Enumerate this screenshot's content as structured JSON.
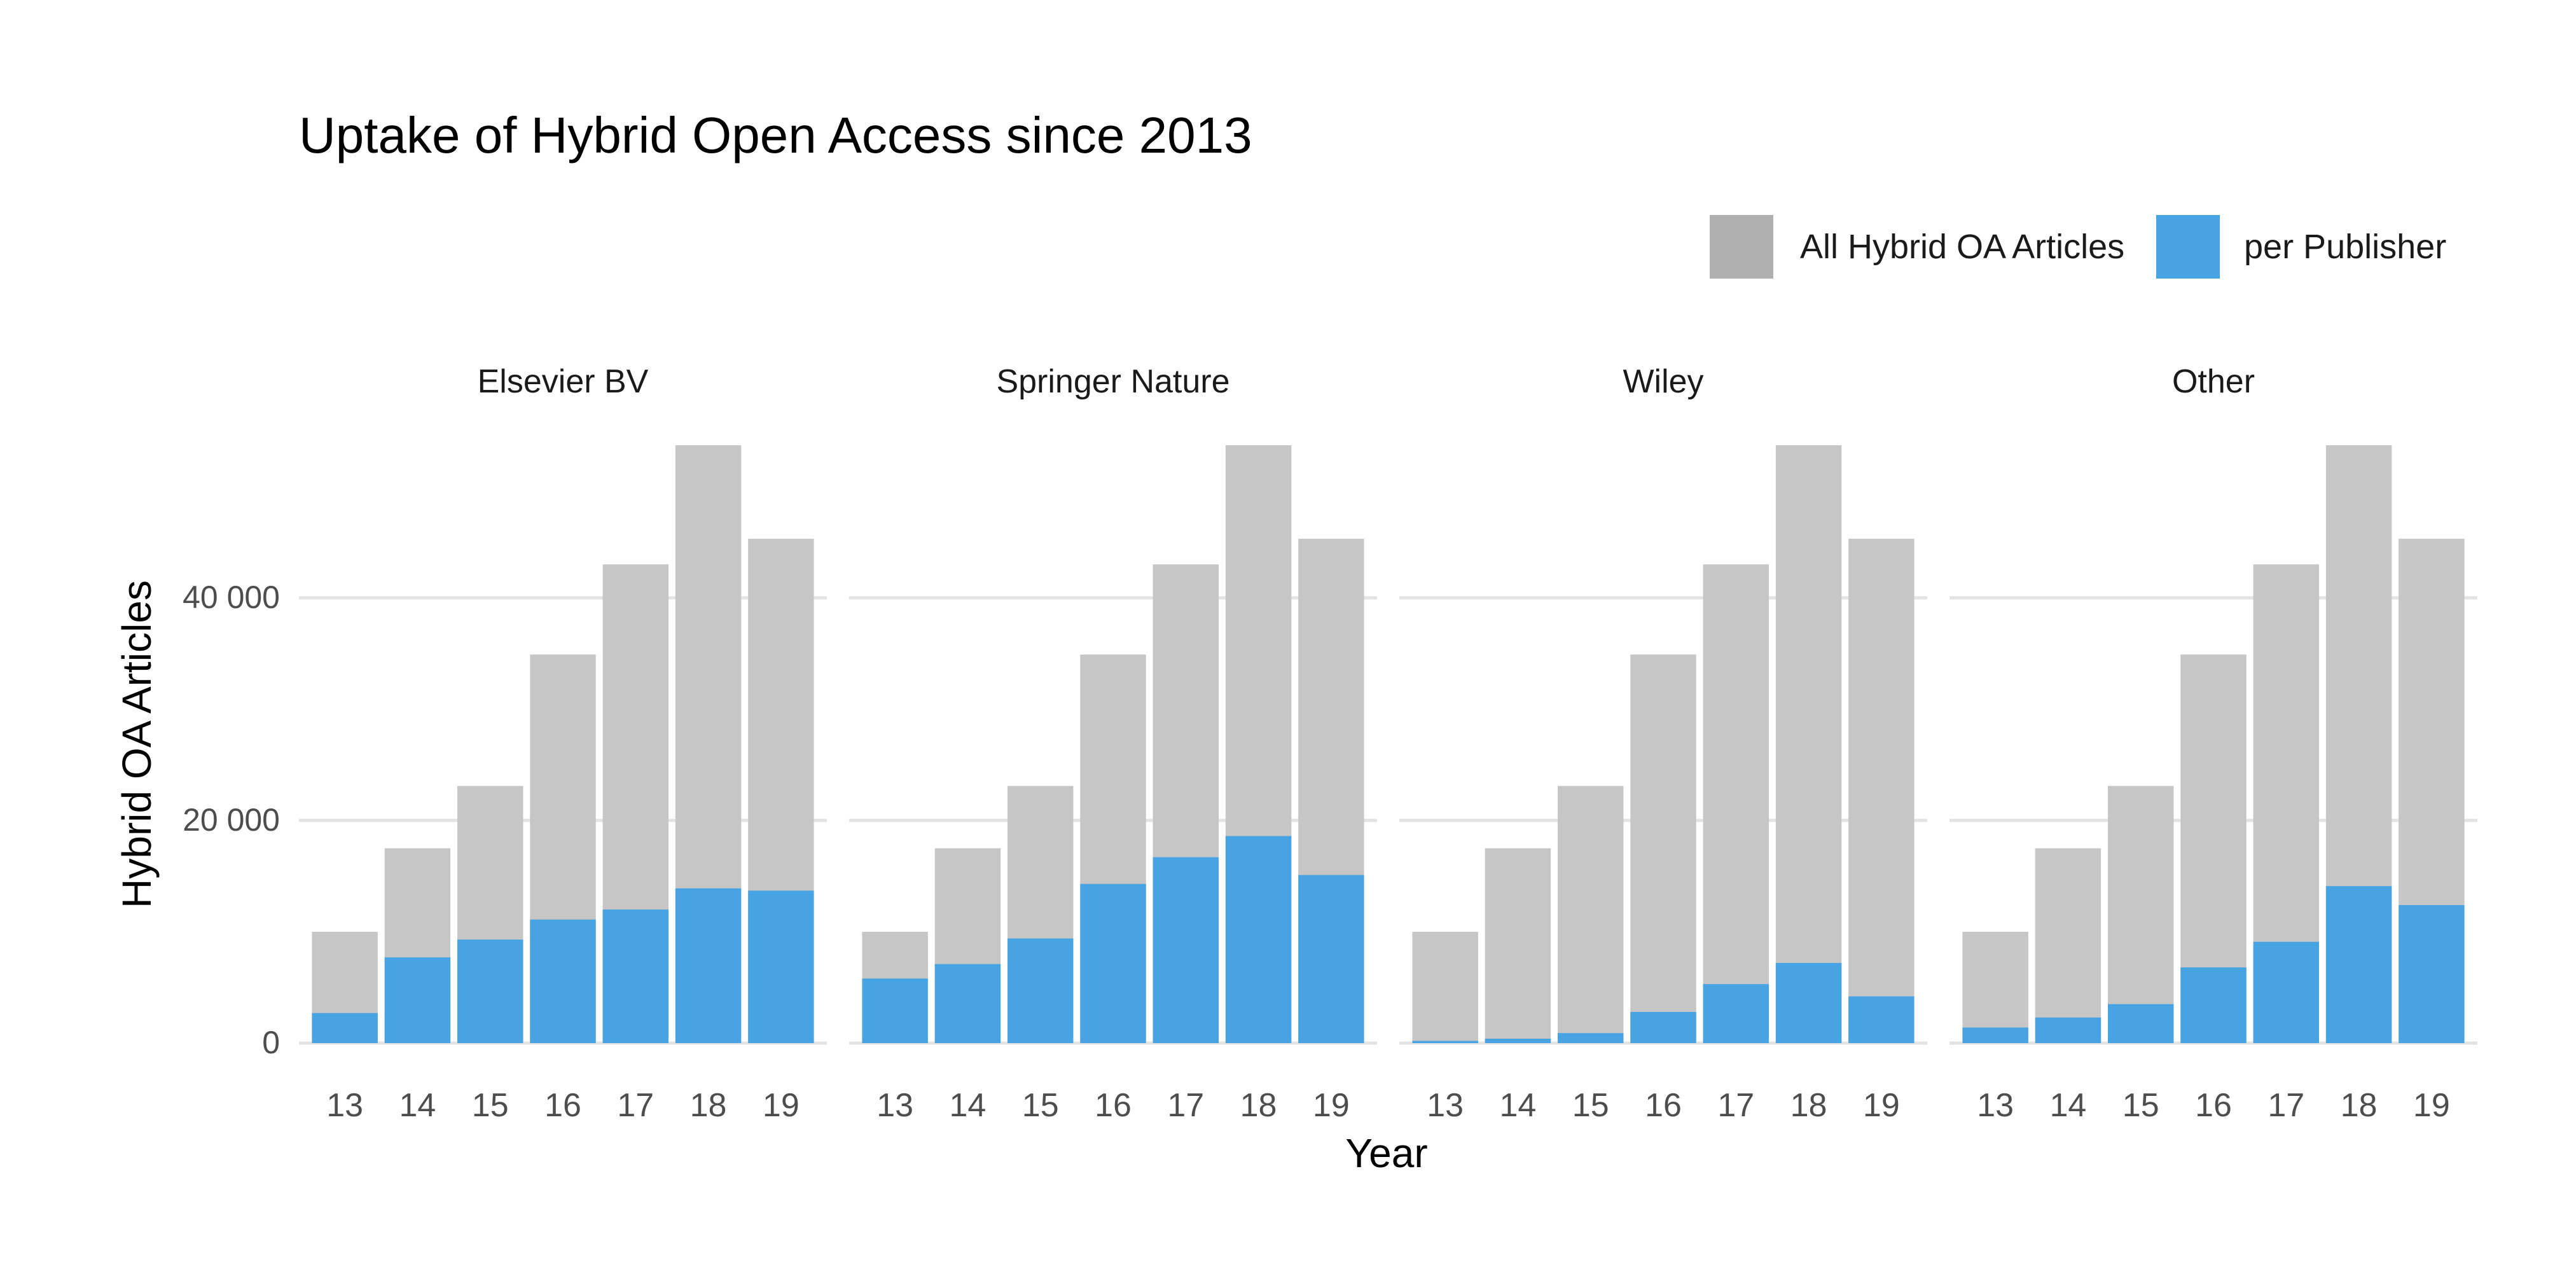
{
  "chart_data": {
    "type": "bar",
    "title": "Uptake of Hybrid Open Access since 2013",
    "xlabel": "Year",
    "ylabel": "Hybrid OA Articles",
    "ylim": [
      0,
      53700
    ],
    "yticks": [
      0,
      20000,
      40000
    ],
    "ytick_labels": [
      "0",
      "20 000",
      "40 000"
    ],
    "grid": true,
    "legend_position": "top-right",
    "categories": [
      "13",
      "14",
      "15",
      "16",
      "17",
      "18",
      "19"
    ],
    "colors": {
      "total": "#c6c6c6",
      "publisher": "#48a3e3",
      "legend_total": "#b0b0b0"
    },
    "legend": [
      {
        "key": "total",
        "label": "All Hybrid OA Articles"
      },
      {
        "key": "publisher",
        "label": "per Publisher"
      }
    ],
    "totals": [
      10000,
      17500,
      23100,
      34900,
      43000,
      53700,
      45300
    ],
    "facets": [
      {
        "name": "Elsevier BV",
        "values": [
          2700,
          7700,
          9300,
          11100,
          12000,
          13900,
          13700
        ]
      },
      {
        "name": "Springer Nature",
        "values": [
          5800,
          7100,
          9400,
          14300,
          16700,
          18600,
          15100
        ]
      },
      {
        "name": "Wiley",
        "values": [
          200,
          400,
          900,
          2800,
          5300,
          7200,
          4200
        ]
      },
      {
        "name": "Other",
        "values": [
          1400,
          2300,
          3500,
          6800,
          9100,
          14100,
          12400
        ]
      }
    ]
  }
}
